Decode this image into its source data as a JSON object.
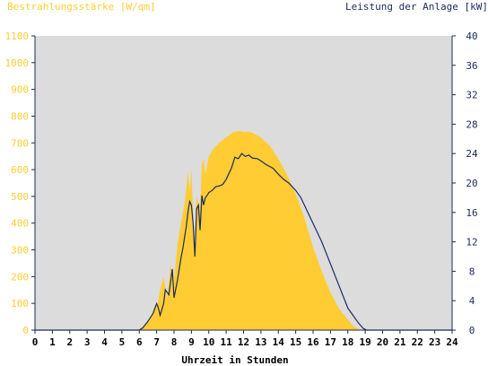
{
  "chart_data": {
    "type": "area",
    "left_axis_title": "Bestrahlungsstärke [W/qm]",
    "right_axis_title": "Leistung der Anlage [kW]",
    "xlabel": "Uhrzeit in Stunden",
    "x_ticks": [
      "0",
      "1",
      "2",
      "3",
      "4",
      "5",
      "6",
      "7",
      "8",
      "9",
      "10",
      "11",
      "12",
      "13",
      "14",
      "15",
      "16",
      "17",
      "18",
      "19",
      "20",
      "21",
      "22",
      "23",
      "24"
    ],
    "xlim": [
      0,
      24
    ],
    "y_left_ticks": [
      "0",
      "100",
      "200",
      "300",
      "400",
      "500",
      "600",
      "700",
      "800",
      "900",
      "1000",
      "1100"
    ],
    "ylim_left": [
      0,
      1100
    ],
    "y_right_ticks": [
      "0",
      "4",
      "8",
      "12",
      "16",
      "20",
      "24",
      "28",
      "32",
      "36",
      "40"
    ],
    "ylim_right": [
      0,
      40
    ],
    "colors": {
      "plot_background": "#dcdcdc",
      "irradiance_fill": "#ffcc33",
      "power_line": "#1a2a5e",
      "left_axis_text": "#ffcc33",
      "right_axis_text": "#1a2a5e"
    },
    "series": [
      {
        "name": "Bestrahlungsstärke [W/qm]",
        "axis": "left",
        "style": "area",
        "x": [
          0,
          5.9,
          6.1,
          6.4,
          6.7,
          6.9,
          7.0,
          7.2,
          7.4,
          7.6,
          7.8,
          8.0,
          8.2,
          8.4,
          8.6,
          8.8,
          8.9,
          9.0,
          9.1,
          9.2,
          9.3,
          9.5,
          9.6,
          9.7,
          9.8,
          10.0,
          10.3,
          10.6,
          11.0,
          11.4,
          11.8,
          12.0,
          12.3,
          12.6,
          13.0,
          13.5,
          14.0,
          14.5,
          15.0,
          15.5,
          16.0,
          16.5,
          17.0,
          17.5,
          18.0,
          18.3,
          18.6,
          18.9,
          19.1,
          19.3,
          24
        ],
        "y": [
          0,
          0,
          8,
          25,
          55,
          95,
          80,
          150,
          200,
          120,
          240,
          190,
          320,
          400,
          470,
          590,
          520,
          600,
          420,
          300,
          500,
          460,
          620,
          640,
          580,
          650,
          680,
          700,
          720,
          740,
          745,
          740,
          742,
          735,
          720,
          690,
          640,
          580,
          510,
          420,
          310,
          220,
          140,
          80,
          40,
          15,
          5,
          0,
          0,
          0,
          0
        ]
      },
      {
        "name": "Leistung der Anlage [kW]",
        "axis": "right",
        "style": "line",
        "x": [
          0,
          6.0,
          6.2,
          6.5,
          6.8,
          7.0,
          7.1,
          7.2,
          7.4,
          7.5,
          7.7,
          7.8,
          7.9,
          8.0,
          8.2,
          8.4,
          8.5,
          8.6,
          8.7,
          8.8,
          8.9,
          9.0,
          9.1,
          9.2,
          9.3,
          9.4,
          9.5,
          9.6,
          9.7,
          9.8,
          9.9,
          10.0,
          10.2,
          10.4,
          10.6,
          10.8,
          11.0,
          11.3,
          11.5,
          11.7,
          11.9,
          12.1,
          12.3,
          12.5,
          12.8,
          13.0,
          13.3,
          13.7,
          14.0,
          14.3,
          14.6,
          15.0,
          15.3,
          15.6,
          16.0,
          16.5,
          17.0,
          17.5,
          18.0,
          18.3,
          18.6,
          18.9,
          19.1,
          19.3,
          24
        ],
        "y": [
          0,
          0,
          0.3,
          1.2,
          2.3,
          3.6,
          3.0,
          2.0,
          3.6,
          5.5,
          4.8,
          6.5,
          8.3,
          4.4,
          6.8,
          9.8,
          11.0,
          12.5,
          14.0,
          16.0,
          17.5,
          17.0,
          14.5,
          10.0,
          16.5,
          17.0,
          13.6,
          18.3,
          17.0,
          18.0,
          18.3,
          18.7,
          19.0,
          19.5,
          19.6,
          19.8,
          20.5,
          22.0,
          23.5,
          23.3,
          24.0,
          23.6,
          23.8,
          23.4,
          23.3,
          23.0,
          22.5,
          22.0,
          21.2,
          20.5,
          20.0,
          19.0,
          18.0,
          16.5,
          14.5,
          12.0,
          9.0,
          6.0,
          3.0,
          2.0,
          1.0,
          0.2,
          0,
          0,
          0
        ]
      }
    ]
  }
}
